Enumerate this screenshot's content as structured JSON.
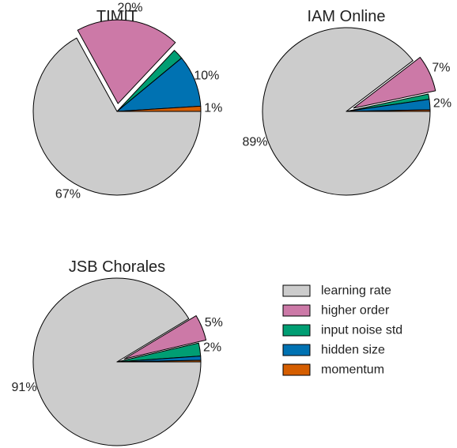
{
  "chart_data": [
    {
      "type": "pie",
      "title": "TIMIT",
      "categories": [
        "learning rate",
        "higher order",
        "input noise std",
        "hidden size",
        "momentum"
      ],
      "values": [
        67,
        20,
        2,
        10,
        1
      ],
      "labels": [
        "67%",
        "20%",
        "",
        "10%",
        "1%"
      ],
      "exploded": [
        "higher order"
      ]
    },
    {
      "type": "pie",
      "title": "IAM Online",
      "categories": [
        "learning rate",
        "higher order",
        "input noise std",
        "hidden size",
        "momentum"
      ],
      "values": [
        89,
        7,
        1,
        2,
        0.3
      ],
      "labels": [
        "89%",
        "7%",
        "",
        "2%",
        ""
      ],
      "exploded": [
        "higher order"
      ]
    },
    {
      "type": "pie",
      "title": "JSB Chorales",
      "categories": [
        "learning rate",
        "higher order",
        "input noise std",
        "hidden size",
        "momentum"
      ],
      "values": [
        91,
        5,
        2.5,
        0.8,
        0.3
      ],
      "labels": [
        "91%",
        "5%",
        "2%",
        "",
        ""
      ],
      "exploded": [
        "higher order"
      ]
    }
  ],
  "legend": {
    "placement": "bottom-right",
    "items": [
      {
        "label": "learning rate",
        "color": "#cccccc"
      },
      {
        "label": "higher order",
        "color": "#cc79a7"
      },
      {
        "label": "input noise std",
        "color": "#009e73"
      },
      {
        "label": "hidden size",
        "color": "#0072b2"
      },
      {
        "label": "momentum",
        "color": "#d55e00"
      }
    ]
  }
}
